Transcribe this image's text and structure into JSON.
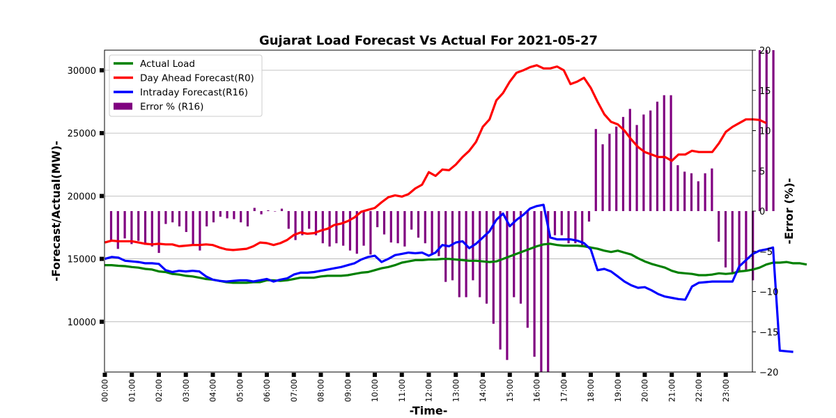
{
  "chart_data": {
    "type": "line",
    "title": "Gujarat Load Forecast Vs Actual For 2021-05-27",
    "xlabel": "-Time-",
    "ylabel": "-Forecast/Actual(MW)-",
    "y2label": "-Error (%)-",
    "x_tick_labels": [
      "00:00",
      "01:00",
      "02:00",
      "03:00",
      "04:00",
      "05:00",
      "06:00",
      "07:00",
      "08:00",
      "09:00",
      "10:00",
      "11:00",
      "12:00",
      "13:00",
      "14:00",
      "15:00",
      "16:00",
      "17:00",
      "18:00",
      "19:00",
      "20:00",
      "21:00",
      "22:00",
      "23:00"
    ],
    "ylim": [
      6000,
      31600
    ],
    "y_ticks": [
      10000,
      15000,
      20000,
      25000,
      30000
    ],
    "y2lim": [
      -20,
      20
    ],
    "y2_ticks": [
      -20,
      -15,
      -10,
      -5,
      0,
      5,
      10,
      15,
      20
    ],
    "grid": "horizontal",
    "legend_position": "top-left",
    "colors": {
      "actual": "#008000",
      "day_ahead": "#ff0000",
      "intraday": "#0000ff",
      "error": "#800080"
    },
    "series": [
      {
        "name": "Actual Load",
        "kind": "line",
        "values": [
          14500,
          14500,
          14450,
          14420,
          14350,
          14300,
          14200,
          14150,
          14000,
          13950,
          13800,
          13750,
          13650,
          13600,
          13500,
          13400,
          13350,
          13250,
          13150,
          13100,
          13100,
          13100,
          13150,
          13150,
          13300,
          13300,
          13250,
          13300,
          13400,
          13500,
          13500,
          13500,
          13600,
          13650,
          13650,
          13650,
          13700,
          13800,
          13900,
          13950,
          14100,
          14250,
          14350,
          14500,
          14700,
          14800,
          14900,
          14900,
          14950,
          14950,
          15000,
          15000,
          14950,
          14900,
          14850,
          14850,
          14800,
          14750,
          14800,
          15000,
          15200,
          15400,
          15600,
          15800,
          16000,
          16150,
          16200,
          16100,
          16050,
          16050,
          16050,
          16000,
          15900,
          15800,
          15650,
          15550,
          15650,
          15500,
          15350,
          15050,
          14800,
          14600,
          14450,
          14300,
          14050,
          13900,
          13850,
          13800,
          13700,
          13700,
          13750,
          13850,
          13800,
          13850,
          14000,
          14050,
          14150,
          14300,
          14550,
          14700,
          14700,
          14750,
          14650,
          14650,
          14550
        ]
      },
      {
        "name": "Day Ahead Forecast(R0)",
        "kind": "line",
        "values": [
          16300,
          16450,
          16400,
          16400,
          16400,
          16300,
          16200,
          16150,
          16200,
          16150,
          16150,
          16000,
          16050,
          16100,
          16100,
          16150,
          16100,
          15900,
          15750,
          15700,
          15750,
          15800,
          16000,
          16300,
          16250,
          16100,
          16250,
          16500,
          16900,
          17100,
          17000,
          17050,
          17250,
          17400,
          17700,
          17800,
          18000,
          18300,
          18750,
          18900,
          19050,
          19500,
          19900,
          20050,
          19950,
          20150,
          20600,
          20900,
          21900,
          21600,
          22100,
          22050,
          22500,
          23100,
          23600,
          24300,
          25500,
          26100,
          27600,
          28200,
          29100,
          29800,
          30000,
          30250,
          30400,
          30150,
          30150,
          30300,
          30000,
          28900,
          29100,
          29400,
          28600,
          27500,
          26500,
          25900,
          25700,
          25200,
          24500,
          23900,
          23500,
          23300,
          23100,
          23100,
          22800,
          23300,
          23300,
          23600,
          23500,
          23500,
          23500,
          24200,
          25100,
          25500,
          25800,
          26100,
          26100,
          26050,
          25800
        ]
      },
      {
        "name": "Intraday Forecast(R16)",
        "kind": "line",
        "values": [
          15000,
          15150,
          15100,
          14850,
          14800,
          14750,
          14650,
          14650,
          14600,
          14100,
          13950,
          14050,
          14000,
          14050,
          14000,
          13600,
          13350,
          13250,
          13200,
          13250,
          13300,
          13300,
          13200,
          13300,
          13400,
          13200,
          13350,
          13450,
          13750,
          13900,
          13900,
          13950,
          14050,
          14150,
          14250,
          14350,
          14500,
          14650,
          14950,
          15150,
          15250,
          14750,
          15000,
          15300,
          15400,
          15500,
          15450,
          15500,
          15250,
          15500,
          16100,
          16000,
          16300,
          16400,
          15850,
          16200,
          16700,
          17200,
          18100,
          18600,
          17600,
          18100,
          18500,
          19000,
          19200,
          19300,
          16700,
          16550,
          16550,
          16550,
          16450,
          16250,
          15750,
          14100,
          14200,
          14000,
          13600,
          13200,
          12900,
          12700,
          12750,
          12500,
          12200,
          12000,
          11900,
          11800,
          11750,
          12800,
          13100,
          13150,
          13200,
          13200,
          13200,
          13200,
          14400,
          14900,
          15400,
          15650,
          15750,
          15900,
          7700,
          7650,
          7600
        ]
      },
      {
        "name": "Error % (R16)",
        "kind": "bar",
        "axis": "right",
        "values": [
          -3.7,
          -4.7,
          -3.4,
          -4.1,
          -3.7,
          -4.2,
          -4.4,
          -5.2,
          -1.6,
          -1.4,
          -1.9,
          -2.6,
          -4.3,
          -4.9,
          -1.9,
          -1.4,
          -0.7,
          -0.9,
          -1.0,
          -1.4,
          -1.9,
          0.4,
          -0.4,
          0.1,
          0,
          0.3,
          -2.2,
          -3.6,
          -3.0,
          -2.2,
          -3.0,
          -4.0,
          -4.4,
          -4.0,
          -4.3,
          -4.9,
          -5.3,
          -4.3,
          -5.4,
          -2.0,
          -2.9,
          -3.9,
          -4.0,
          -4.4,
          -2.3,
          -3.3,
          -4.0,
          -5.3,
          -5.6,
          -8.8,
          -8.6,
          -10.7,
          -10.7,
          -8.6,
          -10.7,
          -11.5,
          -14.0,
          -17.2,
          -18.5,
          -10.7,
          -11.5,
          -14.5,
          -18.1,
          -20,
          -20,
          -3.0,
          -3.0,
          -4.0,
          -4.0,
          -4.4,
          -1.3,
          10.2,
          8.3,
          9.6,
          10.5,
          11.7,
          12.7,
          10.7,
          12.0,
          12.5,
          13.6,
          14.4,
          14.4,
          5.7,
          4.9,
          4.7,
          3.7,
          4.7,
          5.3,
          -3.8,
          -7.0,
          -7.7,
          -7.4,
          -7.4,
          -8.6,
          20,
          20,
          20
        ]
      }
    ]
  }
}
